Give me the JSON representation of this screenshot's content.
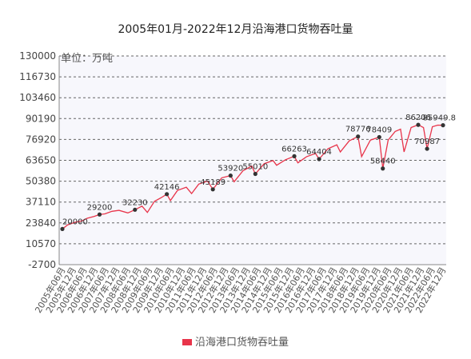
{
  "chart_data": {
    "type": "line",
    "title": "2005年01月-2022年12月沿海港口货物吞吐量",
    "unit_label": "单位：万吨",
    "legend_label": "沿海港口货物吞吐量",
    "series_color": "#e8344a",
    "y_ticks": [
      130000,
      116730,
      103460,
      90190,
      76920,
      63650,
      50380,
      37110,
      23840,
      10570,
      -2700
    ],
    "ylim": [
      -2700,
      130000
    ],
    "x_ticks": [
      "2005年06月",
      "2005年12月",
      "2006年06月",
      "2006年12月",
      "2007年06月",
      "2007年12月",
      "2008年06月",
      "2008年12月",
      "2009年06月",
      "2009年12月",
      "2010年06月",
      "2010年12月",
      "2011年06月",
      "2011年12月",
      "2012年06月",
      "2012年12月",
      "2013年06月",
      "2013年12月",
      "2014年06月",
      "2014年12月",
      "2015年06月",
      "2015年12月",
      "2016年06月",
      "2016年12月",
      "2017年06月",
      "2017年12月",
      "2018年06月",
      "2018年12月",
      "2019年06月",
      "2019年12月",
      "2020年06月",
      "2020年12月",
      "2021年06月",
      "2021年12月",
      "2022年06月",
      "2022年12月"
    ],
    "grid": true,
    "legend_position": "bottom",
    "series": [
      {
        "name": "沿海港口货物吞吐量",
        "points": [
          {
            "x": "2005-01",
            "y": 20000
          },
          {
            "x": "2005-04",
            "y": 22600
          },
          {
            "x": "2005-08",
            "y": 24200
          },
          {
            "x": "2005-12",
            "y": 25100
          },
          {
            "x": "2006-03",
            "y": 26800
          },
          {
            "x": "2006-07",
            "y": 28000
          },
          {
            "x": "2006-10",
            "y": 29200
          },
          {
            "x": "2007-01",
            "y": 29600
          },
          {
            "x": "2007-05",
            "y": 31200
          },
          {
            "x": "2007-09",
            "y": 31800
          },
          {
            "x": "2008-02",
            "y": 30200
          },
          {
            "x": "2008-06",
            "y": 32230
          },
          {
            "x": "2008-10",
            "y": 34500
          },
          {
            "x": "2009-01",
            "y": 30500
          },
          {
            "x": "2009-05",
            "y": 37500
          },
          {
            "x": "2009-09",
            "y": 40000
          },
          {
            "x": "2009-12",
            "y": 42146
          },
          {
            "x": "2010-02",
            "y": 38000
          },
          {
            "x": "2010-06",
            "y": 44500
          },
          {
            "x": "2010-11",
            "y": 46500
          },
          {
            "x": "2011-02",
            "y": 42500
          },
          {
            "x": "2011-06",
            "y": 48500
          },
          {
            "x": "2011-11",
            "y": 50500
          },
          {
            "x": "2012-02",
            "y": 45189
          },
          {
            "x": "2012-07",
            "y": 52500
          },
          {
            "x": "2012-12",
            "y": 53920
          },
          {
            "x": "2013-02",
            "y": 50000
          },
          {
            "x": "2013-07",
            "y": 57000
          },
          {
            "x": "2013-12",
            "y": 60000
          },
          {
            "x": "2014-02",
            "y": 55010
          },
          {
            "x": "2014-07",
            "y": 61500
          },
          {
            "x": "2014-12",
            "y": 63500
          },
          {
            "x": "2015-02",
            "y": 60500
          },
          {
            "x": "2015-07",
            "y": 64000
          },
          {
            "x": "2015-12",
            "y": 66263
          },
          {
            "x": "2016-02",
            "y": 62000
          },
          {
            "x": "2016-07",
            "y": 66000
          },
          {
            "x": "2016-12",
            "y": 68000
          },
          {
            "x": "2017-02",
            "y": 64404
          },
          {
            "x": "2017-07",
            "y": 71000
          },
          {
            "x": "2017-12",
            "y": 73500
          },
          {
            "x": "2018-02",
            "y": 69000
          },
          {
            "x": "2018-07",
            "y": 76000
          },
          {
            "x": "2018-12",
            "y": 78776
          },
          {
            "x": "2019-02",
            "y": 66000
          },
          {
            "x": "2019-07",
            "y": 76500
          },
          {
            "x": "2019-12",
            "y": 78409
          },
          {
            "x": "2020-02",
            "y": 58440
          },
          {
            "x": "2020-05",
            "y": 76500
          },
          {
            "x": "2020-09",
            "y": 82000
          },
          {
            "x": "2020-12",
            "y": 83500
          },
          {
            "x": "2021-02",
            "y": 69000
          },
          {
            "x": "2021-06",
            "y": 84500
          },
          {
            "x": "2021-10",
            "y": 86206
          },
          {
            "x": "2022-01",
            "y": 84500
          },
          {
            "x": "2022-03",
            "y": 70987
          },
          {
            "x": "2022-06",
            "y": 85000
          },
          {
            "x": "2022-09",
            "y": 86000
          },
          {
            "x": "2022-12",
            "y": 85949.8
          }
        ]
      }
    ],
    "annotations": [
      {
        "x": "2005-01",
        "label": "20000"
      },
      {
        "x": "2006-10",
        "label": "29200"
      },
      {
        "x": "2008-06",
        "label": "32230"
      },
      {
        "x": "2009-12",
        "label": "42146"
      },
      {
        "x": "2012-02",
        "label": "45189"
      },
      {
        "x": "2012-12",
        "label": "53920"
      },
      {
        "x": "2014-02",
        "label": "55010"
      },
      {
        "x": "2015-12",
        "label": "66263"
      },
      {
        "x": "2017-02",
        "label": "64404"
      },
      {
        "x": "2018-12",
        "label": "78776"
      },
      {
        "x": "2019-12",
        "label": "78409"
      },
      {
        "x": "2020-02",
        "label": "58440"
      },
      {
        "x": "2021-10",
        "label": "86206"
      },
      {
        "x": "2022-03",
        "label": "70987"
      },
      {
        "x": "2022-12",
        "label": "85949.8"
      }
    ]
  }
}
